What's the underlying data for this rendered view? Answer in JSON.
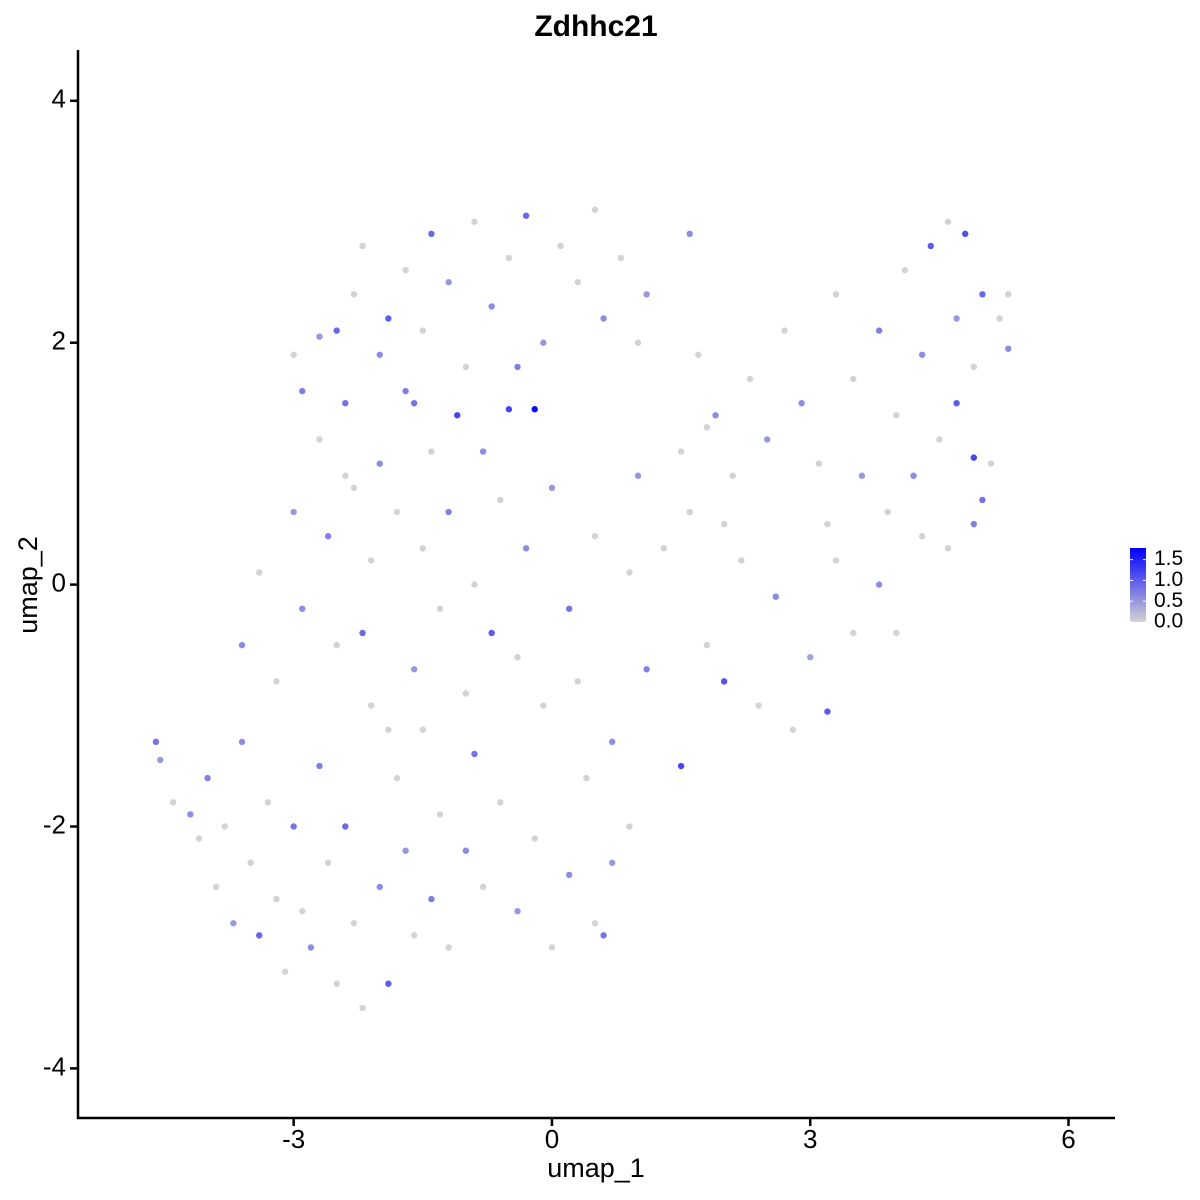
{
  "chart_data": {
    "type": "scatter",
    "title": "Zdhhc21",
    "x_label": "umap_1",
    "y_label": "umap_2",
    "xlim": [
      -5.505,
      6.54
    ],
    "ylim": [
      -4.41,
      4.42
    ],
    "xticks": [
      -3,
      0,
      3,
      6
    ],
    "yticks": [
      -4,
      -2,
      0,
      2,
      4
    ],
    "color_scale": {
      "low": "#d3d3d3",
      "high": "#0000ff",
      "lim": [
        0,
        1.78
      ],
      "ticks": [
        {
          "value": 0,
          "label": "0.0"
        },
        0.5,
        {
          "value": 1,
          "label": "1.0"
        },
        1.5
      ]
    },
    "series": [
      {
        "x": [
          -4.6,
          -4.55,
          -4.4,
          -4.2,
          -4.1,
          -4.0,
          -3.9,
          -3.8,
          -3.7,
          -3.6,
          -3.5,
          -3.4,
          -3.3,
          -3.2,
          -3.1,
          -3.0,
          -2.9,
          -2.8,
          -2.7,
          -2.6,
          -2.5,
          -2.4,
          -2.3,
          -2.2,
          -2.1,
          -2.0,
          -1.9,
          -1.8,
          -1.7,
          -1.6,
          -1.5,
          -1.4,
          -1.3,
          -1.2,
          -1.0,
          -0.9,
          -0.8,
          -0.6,
          -0.4,
          -0.2,
          0.0,
          0.2,
          0.4,
          0.5,
          0.7,
          0.9,
          0.6,
          -3.6,
          -3.4,
          -3.2,
          -3.0,
          -2.9,
          -2.7,
          -2.6,
          -2.5,
          -2.4,
          -2.3,
          -2.2,
          -2.1,
          -2.0,
          -1.9,
          -1.8,
          -1.7,
          -1.6,
          -1.5,
          -1.4,
          -1.3,
          -1.2,
          -1.1,
          -1.0,
          -0.9,
          -0.8,
          -0.7,
          -0.6,
          -0.5,
          -0.4,
          -0.3,
          -0.2,
          -0.1,
          0.0,
          0.2,
          0.3,
          0.5,
          0.7,
          0.9,
          1.0,
          1.1,
          1.3,
          1.5,
          1.6,
          1.8,
          2.0,
          2.2,
          2.4,
          2.6,
          2.8,
          3.0,
          3.2,
          3.3,
          3.5,
          3.8,
          4.0,
          4.3,
          4.6,
          4.9,
          -3.0,
          -2.9,
          -2.7,
          -2.5,
          -2.3,
          -2.2,
          -2.0,
          -1.9,
          -1.7,
          -1.5,
          -1.4,
          -1.2,
          -1.0,
          -0.9,
          -0.7,
          -0.5,
          -0.3,
          -0.1,
          0.1,
          0.3,
          0.5,
          0.6,
          0.8,
          1.0,
          1.1,
          1.6,
          -0.4,
          -1.6,
          -2.4,
          1.5,
          1.7,
          1.9,
          2.1,
          2.3,
          2.5,
          2.7,
          2.9,
          3.1,
          3.3,
          3.5,
          3.6,
          3.8,
          4.0,
          4.1,
          4.3,
          4.4,
          4.5,
          4.6,
          4.7,
          4.8,
          4.9,
          5.0,
          5.1,
          5.2,
          5.3,
          5.3,
          4.9,
          5.0,
          2.0,
          1.8,
          3.2,
          4.2,
          4.7,
          3.9
        ],
        "values": [
          -1.3,
          -1.45,
          -1.8,
          -1.9,
          -2.1,
          -1.6,
          -2.5,
          -2.0,
          -2.8,
          -1.3,
          -2.3,
          -2.9,
          -1.8,
          -2.6,
          -3.2,
          -2.0,
          -2.7,
          -3.0,
          -1.5,
          -2.3,
          -3.3,
          -2.0,
          -2.8,
          -3.5,
          -1.0,
          -2.5,
          -3.3,
          -1.6,
          -2.2,
          -2.9,
          -1.2,
          -2.6,
          -1.9,
          -3.0,
          -2.2,
          -1.4,
          -2.5,
          -1.8,
          -2.7,
          -2.1,
          -3.0,
          -2.4,
          -1.6,
          -2.8,
          -2.3,
          -2.0,
          -2.9,
          -0.5,
          0.1,
          -0.8,
          0.6,
          -0.2,
          1.2,
          0.4,
          -0.5,
          1.5,
          0.8,
          -0.4,
          0.2,
          1.0,
          -1.2,
          0.6,
          1.6,
          -0.7,
          0.3,
          1.1,
          -0.2,
          0.6,
          1.4,
          -0.9,
          0.0,
          1.1,
          -0.4,
          0.7,
          1.45,
          -0.6,
          0.3,
          1.45,
          -1.0,
          0.8,
          -0.2,
          -0.8,
          0.4,
          -1.3,
          0.1,
          0.9,
          -0.7,
          0.3,
          -1.5,
          0.6,
          -0.5,
          -0.8,
          0.2,
          -1.0,
          -0.1,
          -1.2,
          -0.6,
          -1.05,
          0.2,
          -0.4,
          0.0,
          -0.4,
          0.4,
          0.3,
          0.5,
          1.9,
          1.6,
          2.05,
          2.1,
          2.4,
          2.8,
          1.9,
          2.2,
          2.6,
          2.1,
          2.9,
          2.5,
          1.8,
          3.0,
          2.3,
          2.7,
          3.05,
          2.0,
          2.8,
          2.5,
          3.1,
          2.2,
          2.7,
          2.0,
          2.4,
          2.9,
          1.8,
          1.5,
          0.9,
          1.1,
          1.9,
          1.4,
          0.9,
          1.7,
          1.2,
          2.1,
          1.5,
          1.0,
          2.4,
          1.7,
          0.9,
          2.1,
          1.4,
          2.6,
          1.9,
          2.8,
          1.2,
          3.0,
          2.2,
          2.9,
          1.8,
          2.4,
          1.0,
          2.2,
          1.95,
          2.4,
          1.05,
          0.7,
          0.5,
          1.3,
          0.5,
          0.9,
          1.5,
          0.6
        ],
        "expression": [
          0.8,
          0.5,
          0,
          0.6,
          0,
          0.7,
          0,
          0,
          0.5,
          0.6,
          0,
          0.9,
          0,
          0,
          0,
          0.8,
          0,
          0.6,
          0.7,
          0,
          0,
          0.9,
          0,
          0,
          0,
          0.6,
          1.0,
          0,
          0.5,
          0,
          0,
          0.7,
          0,
          0,
          0.6,
          0.8,
          0,
          0,
          0.5,
          0,
          0,
          0.6,
          0,
          0,
          0.5,
          0,
          0.8,
          0.6,
          0,
          0,
          0.5,
          0.6,
          0,
          0.7,
          0,
          0.8,
          0,
          0.9,
          0,
          0.6,
          0,
          0,
          0.7,
          0.5,
          0,
          0,
          0,
          0.7,
          1.2,
          0,
          0,
          0.6,
          1.0,
          0,
          1.2,
          0,
          0.6,
          1.7,
          0,
          0.5,
          0.8,
          0,
          0,
          0.6,
          0,
          0.5,
          0.7,
          0,
          1.2,
          0,
          0,
          1.1,
          0,
          0,
          0.6,
          0,
          0.4,
          1.0,
          0,
          0,
          0.6,
          0,
          0,
          0,
          0.7,
          0,
          0.7,
          0.5,
          0.9,
          0,
          0,
          0.6,
          1.0,
          0,
          0,
          0.9,
          0.5,
          0,
          0,
          0.6,
          0,
          0.9,
          0.5,
          0,
          0,
          0,
          0.6,
          0,
          0,
          0.5,
          0.6,
          0.7,
          0.8,
          0,
          0,
          0,
          0.6,
          0,
          0,
          0.5,
          0,
          0.6,
          0,
          0,
          0,
          0.5,
          0.7,
          0,
          0,
          0.6,
          1.0,
          0,
          0,
          0.5,
          1.1,
          0,
          0.9,
          0,
          0,
          0.6,
          0,
          1.2,
          0.8,
          0,
          0,
          0,
          0.6,
          1.0,
          0
        ]
      }
    ]
  }
}
